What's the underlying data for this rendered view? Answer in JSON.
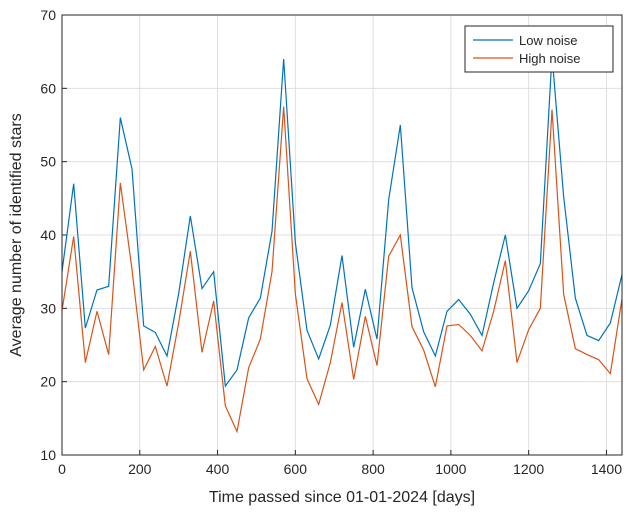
{
  "chart_data": {
    "type": "line",
    "xlabel": "Time passed since 01-01-2024 [days]",
    "ylabel": "Average number of identified stars",
    "x": [
      0,
      30,
      60,
      90,
      120,
      150,
      180,
      210,
      240,
      270,
      300,
      330,
      360,
      390,
      420,
      450,
      480,
      510,
      540,
      570,
      600,
      630,
      660,
      690,
      720,
      750,
      780,
      810,
      840,
      870,
      900,
      930,
      960,
      990,
      1020,
      1050,
      1080,
      1110,
      1140,
      1170,
      1200,
      1230,
      1260,
      1290,
      1320,
      1350,
      1380,
      1410,
      1440
    ],
    "series": [
      {
        "name": "Low noise",
        "color": "#0072bd",
        "values": [
          35,
          47,
          27.3,
          32.5,
          33,
          56,
          49,
          27.6,
          26.7,
          23.5,
          32,
          42.6,
          32.7,
          35,
          19.4,
          21.6,
          28.7,
          31.4,
          40.5,
          64,
          39,
          27,
          23.1,
          27.7,
          37.2,
          24.7,
          32.6,
          25.8,
          44.8,
          55,
          32.8,
          26.8,
          23.5,
          29.6,
          31.2,
          29.2,
          26.3,
          33.5,
          40,
          30,
          32.4,
          36.1,
          64.5,
          45.2,
          31.4,
          26.3,
          25.6,
          28,
          34.6
        ]
      },
      {
        "name": "High noise",
        "color": "#d95319",
        "values": [
          29.7,
          39.8,
          22.6,
          29.6,
          23.7,
          47.1,
          35.3,
          21.6,
          24.8,
          19.4,
          28,
          37.8,
          24,
          31,
          16.7,
          13.2,
          21.9,
          25.8,
          35,
          57.5,
          32,
          20.4,
          16.9,
          22.6,
          30.8,
          20.3,
          28.9,
          22.2,
          37.1,
          40,
          27.5,
          24.3,
          19.3,
          27.6,
          27.8,
          26.3,
          24.2,
          29.6,
          36.5,
          22.6,
          27.1,
          30,
          57.1,
          31.9,
          24.5,
          23.7,
          23,
          21.1,
          31.3
        ]
      }
    ],
    "xlim": [
      0,
      1440
    ],
    "xticks": [
      0,
      200,
      400,
      600,
      800,
      1000,
      1200,
      1400
    ],
    "ylim": [
      10,
      70
    ],
    "yticks": [
      10,
      20,
      30,
      40,
      50,
      60,
      70
    ],
    "grid": true,
    "legend": "northeast"
  }
}
